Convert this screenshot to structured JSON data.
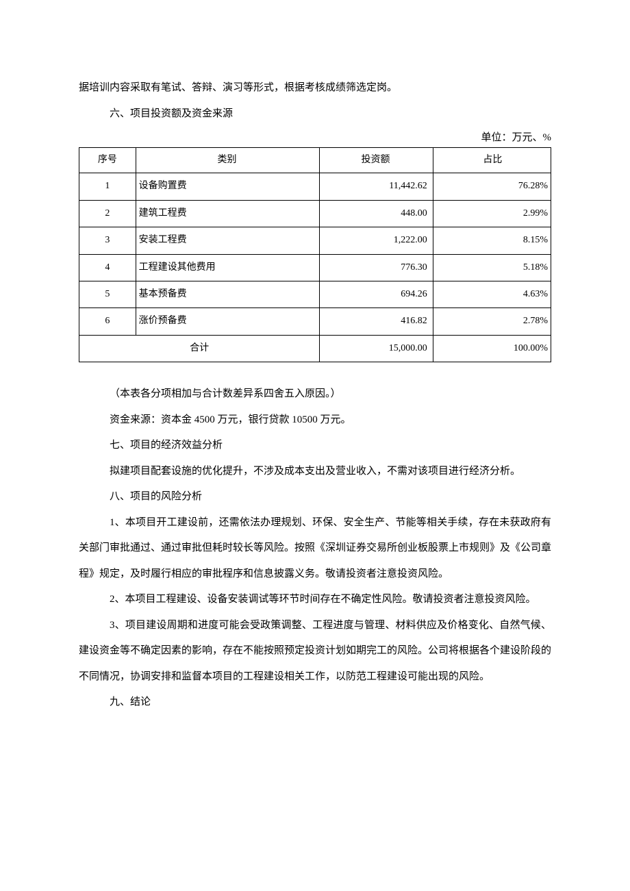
{
  "intro_line": "据培训内容采取有笔试、答辩、演习等形式，根据考核成绩筛选定岗。",
  "section6_title": "六、项目投资额及资金来源",
  "unit_note": "单位：万元、%",
  "table": {
    "headers": {
      "seq": "序号",
      "category": "类别",
      "amount": "投资额",
      "percent": "占比"
    },
    "rows": [
      {
        "seq": "1",
        "category": "设备购置费",
        "amount": "11,442.62",
        "percent": "76.28%"
      },
      {
        "seq": "2",
        "category": "建筑工程费",
        "amount": "448.00",
        "percent": "2.99%"
      },
      {
        "seq": "3",
        "category": "安装工程费",
        "amount": "1,222.00",
        "percent": "8.15%"
      },
      {
        "seq": "4",
        "category": "工程建设其他费用",
        "amount": "776.30",
        "percent": "5.18%"
      },
      {
        "seq": "5",
        "category": "基本预备费",
        "amount": "694.26",
        "percent": "4.63%"
      },
      {
        "seq": "6",
        "category": "涨价预备费",
        "amount": "416.82",
        "percent": "2.78%"
      }
    ],
    "total": {
      "label": "合计",
      "amount": "15,000.00",
      "percent": "100.00%"
    }
  },
  "note_rounding": "（本表各分项相加与合计数差异系四舍五入原因。）",
  "funding_source": "资金来源：资本金 4500 万元，银行贷款 10500 万元。",
  "section7_title": "七、项目的经济效益分析",
  "section7_body": "拟建项目配套设施的优化提升，不涉及成本支出及营业收入，不需对该项目进行经济分析。",
  "section8_title": "八、项目的风险分析",
  "risk1": "1、本项目开工建设前，还需依法办理规划、环保、安全生产、节能等相关手续，存在未获政府有关部门审批通过、通过审批但耗时较长等风险。按照《深圳证券交易所创业板股票上市规则》及《公司章程》规定，及时履行相应的审批程序和信息披露义务。敬请投资者注意投资风险。",
  "risk2": "2、本项目工程建设、设备安装调试等环节时间存在不确定性风险。敬请投资者注意投资风险。",
  "risk3": "3、项目建设周期和进度可能会受政策调整、工程进度与管理、材料供应及价格变化、自然气候、建设资金等不确定因素的影响，存在不能按照预定投资计划如期完工的风险。公司将根据各个建设阶段的不同情况，协调安排和监督本项目的工程建设相关工作，以防范工程建设可能出现的风险。",
  "section9_title": "九、结论"
}
